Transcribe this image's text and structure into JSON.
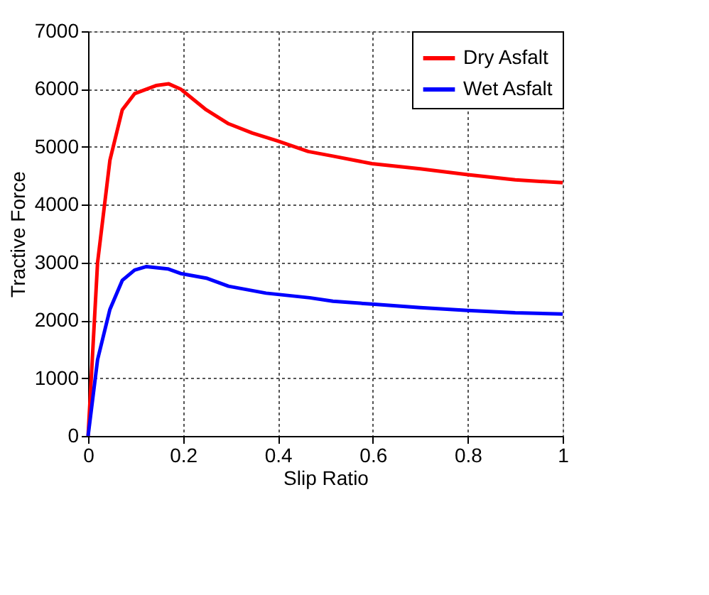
{
  "chart_data": {
    "type": "line",
    "xlabel": "Slip Ratio",
    "ylabel": "Tractive Force",
    "xlim": [
      0,
      1
    ],
    "ylim": [
      0,
      7000
    ],
    "xticks": [
      0,
      0.2,
      0.4,
      0.6,
      0.8,
      1
    ],
    "yticks": [
      0,
      1000,
      2000,
      3000,
      4000,
      5000,
      6000,
      7000
    ],
    "grid": true,
    "legend": "top right",
    "line_style": "solid",
    "marker": "none",
    "series": [
      {
        "name": "Dry Asfalt",
        "color": "#ff0000",
        "x": [
          0,
          0.02,
          0.046,
          0.072,
          0.098,
          0.143,
          0.17,
          0.195,
          0.249,
          0.296,
          0.346,
          0.4,
          0.464,
          0.516,
          0.598,
          0.7,
          0.8,
          0.9,
          1.0
        ],
        "values": [
          0,
          3000,
          4770,
          5640,
          5920,
          6060,
          6090,
          6000,
          5640,
          5400,
          5240,
          5100,
          4920,
          4840,
          4710,
          4620,
          4520,
          4430,
          4380
        ]
      },
      {
        "name": "Wet Asfalt",
        "color": "#0000ff",
        "x": [
          0,
          0.02,
          0.046,
          0.072,
          0.098,
          0.123,
          0.168,
          0.195,
          0.249,
          0.296,
          0.375,
          0.467,
          0.516,
          0.598,
          0.7,
          0.8,
          0.9,
          1.0
        ],
        "values": [
          0,
          1320,
          2190,
          2690,
          2870,
          2930,
          2890,
          2810,
          2730,
          2590,
          2470,
          2390,
          2330,
          2280,
          2220,
          2170,
          2130,
          2110
        ]
      }
    ]
  }
}
